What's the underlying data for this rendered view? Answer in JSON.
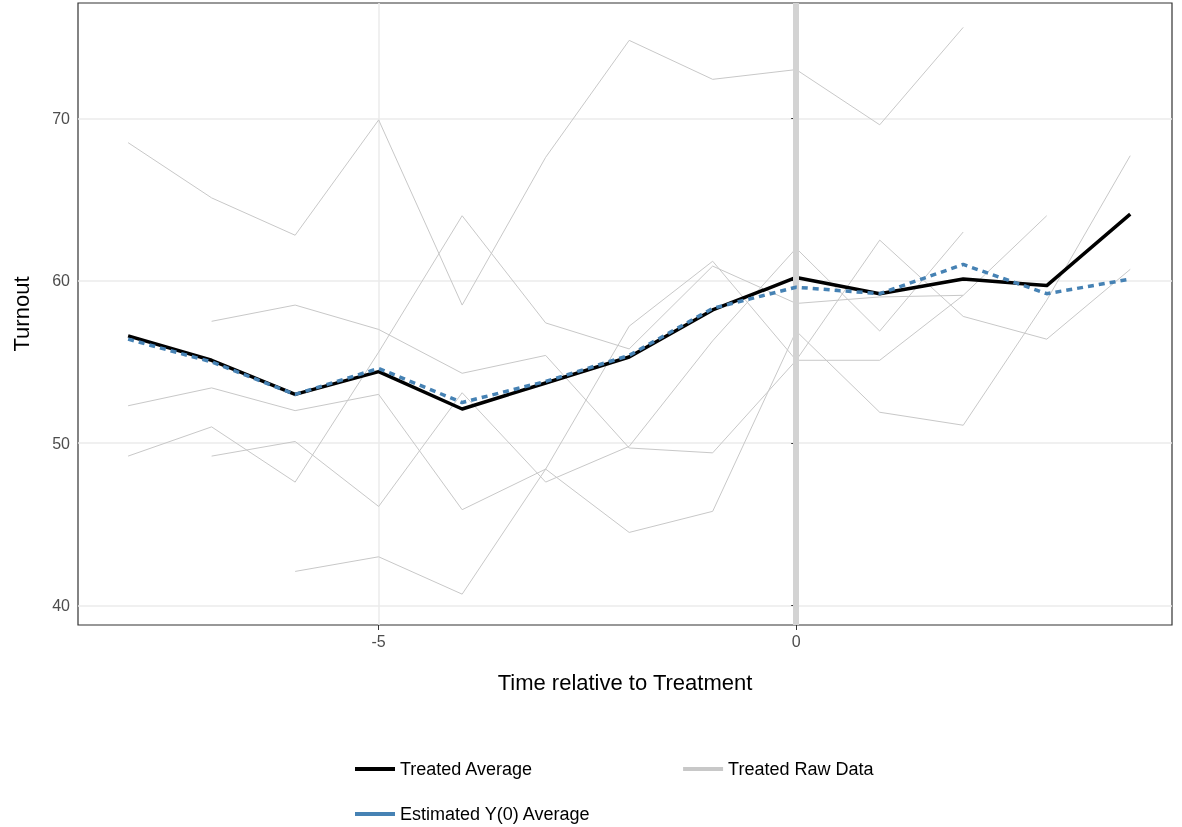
{
  "chart_data": {
    "type": "line",
    "xlabel": "Time relative to Treatment",
    "ylabel": "Turnout",
    "x": [
      -8,
      -7,
      -6,
      -5,
      -4,
      -3,
      -2,
      -1,
      0,
      1,
      2,
      3,
      4
    ],
    "xlim": [
      -8.6,
      4.5
    ],
    "ylim": [
      38.8,
      77.1
    ],
    "xticks": [
      -5,
      0
    ],
    "yticks": [
      40,
      50,
      60,
      70
    ],
    "grid": true,
    "legend": "bottom",
    "marker": "none",
    "ref_lines": [
      {
        "axis": "x",
        "value": 0,
        "label": null,
        "color": "#d3d3d3"
      }
    ],
    "series": [
      {
        "name": "Treated Average",
        "color": "#000000",
        "line_style": "solid",
        "values": [
          56.6,
          55.1,
          53.0,
          54.4,
          52.1,
          53.7,
          55.3,
          58.2,
          60.2,
          59.2,
          60.1,
          59.7,
          64.1
        ]
      },
      {
        "name": "Treated Raw Data",
        "color": "#c8c8c8",
        "line_style": "solid",
        "values": [
          68.5,
          65.1,
          62.8,
          69.9,
          58.5,
          67.6,
          74.8,
          72.4,
          73.0,
          69.6,
          75.6,
          null,
          null
        ]
      },
      {
        "color": "#c8c8c8",
        "line_style": "solid",
        "values": [
          49.2,
          51.0,
          47.6,
          55.6,
          64.0,
          57.4,
          55.8,
          60.9,
          58.6,
          59.0,
          59.1,
          null,
          null
        ]
      },
      {
        "color": "#c8c8c8",
        "line_style": "solid",
        "values": [
          52.3,
          53.4,
          52.0,
          53.0,
          45.9,
          48.4,
          44.5,
          45.8,
          56.9,
          51.9,
          51.1,
          58.8,
          67.7
        ]
      },
      {
        "color": "#c8c8c8",
        "line_style": "solid",
        "values": [
          null,
          57.5,
          58.5,
          57.0,
          54.3,
          55.4,
          49.7,
          49.4,
          55.1,
          62.5,
          57.8,
          56.4,
          60.7
        ]
      },
      {
        "color": "#c8c8c8",
        "line_style": "solid",
        "values": [
          null,
          49.2,
          50.1,
          46.1,
          53.1,
          47.6,
          49.8,
          56.3,
          62.0,
          56.9,
          63.0,
          null,
          null
        ]
      },
      {
        "color": "#c8c8c8",
        "line_style": "solid",
        "values": [
          null,
          null,
          42.1,
          43.0,
          40.7,
          48.4,
          57.2,
          61.2,
          55.1,
          55.1,
          59.1,
          64.0,
          null
        ]
      },
      {
        "name": "Estimated Y(0) Average",
        "color": "#4682b4",
        "line_style": "dashed",
        "values": [
          56.4,
          55.0,
          53.0,
          54.6,
          52.5,
          53.8,
          55.4,
          58.3,
          59.6,
          59.2,
          61.0,
          59.2,
          60.1
        ]
      }
    ]
  }
}
